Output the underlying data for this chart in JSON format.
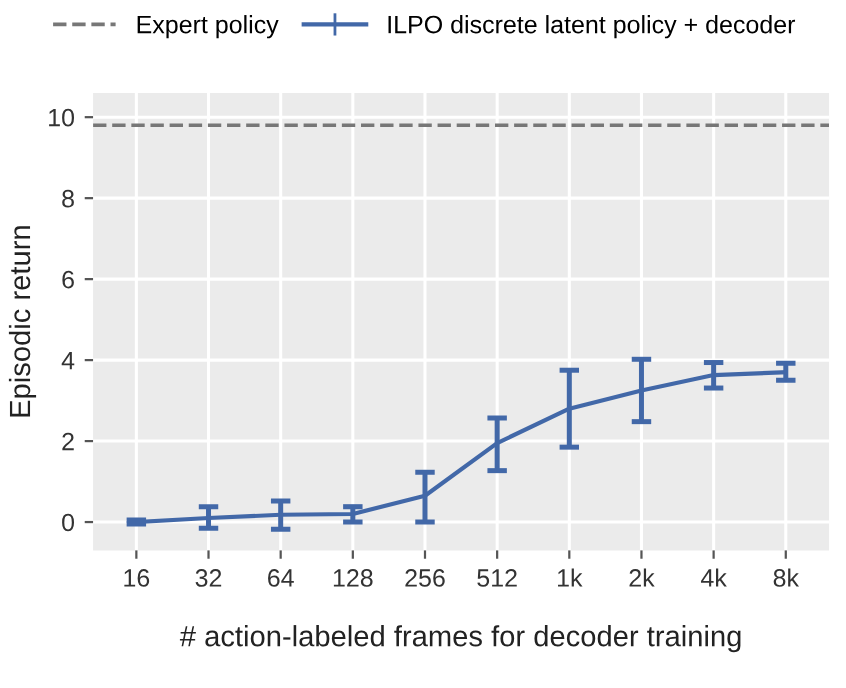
{
  "chart_data": {
    "type": "line",
    "xlabel": "# action-labeled frames for decoder training",
    "ylabel": "Episodic return",
    "categories": [
      "16",
      "32",
      "64",
      "128",
      "256",
      "512",
      "1k",
      "2k",
      "4k",
      "8k"
    ],
    "series": [
      {
        "name": "ILPO discrete latent policy + decoder",
        "color": "#4268a8",
        "values": [
          0.0,
          0.1,
          0.18,
          0.2,
          0.65,
          1.95,
          2.8,
          3.25,
          3.63,
          3.7
        ],
        "errors": [
          [
            -0.05,
            0.05
          ],
          [
            -0.15,
            0.38
          ],
          [
            -0.18,
            0.52
          ],
          [
            0.0,
            0.38
          ],
          [
            0.0,
            1.23
          ],
          [
            1.27,
            2.57
          ],
          [
            1.85,
            3.75
          ],
          [
            2.48,
            4.02
          ],
          [
            3.31,
            3.94
          ],
          [
            3.5,
            3.92
          ]
        ]
      }
    ],
    "ref_lines": [
      {
        "axis": "y",
        "value": 9.8,
        "label": "Expert policy",
        "color": "#777777",
        "line_style": "dashed"
      }
    ],
    "ylim": [
      -0.7,
      10.6
    ],
    "yticks": [
      0,
      2,
      4,
      6,
      8,
      10
    ],
    "grid": true,
    "legend": "top",
    "marker": "none",
    "line_style": "solid"
  }
}
